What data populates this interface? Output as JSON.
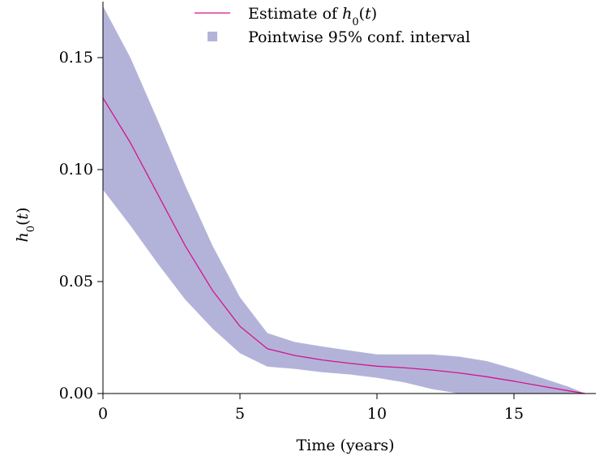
{
  "chart_data": {
    "type": "area",
    "xlabel": "Time (years)",
    "ylabel_base": "h",
    "ylabel_sub": "0",
    "ylabel_arg": "(t)",
    "xlim": [
      0,
      18
    ],
    "ylim": [
      0,
      0.175
    ],
    "x_ticks": [
      0,
      5,
      10,
      15
    ],
    "x_tick_labels": [
      "0",
      "5",
      "10",
      "15"
    ],
    "y_ticks": [
      0,
      0.05,
      0.1,
      0.15
    ],
    "y_tick_labels": [
      "0.00",
      "0.05",
      "0.10",
      "0.15"
    ],
    "legend": {
      "position": "top-center",
      "estimate": {
        "prefix": "Estimate of ",
        "base": "h",
        "sub": "0",
        "arg": "(t)"
      },
      "interval": "Pointwise 95% conf. interval"
    },
    "colors": {
      "estimate_line": "#d4148c",
      "interval_fill": "#b3b3da"
    },
    "x": [
      0,
      1,
      2,
      3,
      4,
      5,
      6,
      7,
      8,
      9,
      10,
      11,
      12,
      13,
      14,
      15,
      16,
      17,
      17.6
    ],
    "series": [
      {
        "name": "Estimate of h0(t)",
        "kind": "line",
        "values": [
          0.132,
          0.112,
          0.089,
          0.066,
          0.046,
          0.03,
          0.02,
          0.017,
          0.015,
          0.0135,
          0.0122,
          0.0115,
          0.0105,
          0.0092,
          0.0075,
          0.0055,
          0.0033,
          0.0012,
          0.0
        ]
      },
      {
        "name": "Pointwise 95% conf. interval",
        "kind": "band",
        "lower": [
          0.091,
          0.075,
          0.058,
          0.042,
          0.029,
          0.018,
          0.012,
          0.011,
          0.0095,
          0.0085,
          0.007,
          0.005,
          0.002,
          0.0,
          0.0,
          0.0,
          0.0,
          0.0,
          0.0
        ],
        "upper": [
          0.173,
          0.15,
          0.122,
          0.093,
          0.066,
          0.043,
          0.027,
          0.023,
          0.021,
          0.0192,
          0.0175,
          0.0175,
          0.0175,
          0.0165,
          0.0145,
          0.011,
          0.007,
          0.003,
          0.0
        ]
      }
    ]
  }
}
